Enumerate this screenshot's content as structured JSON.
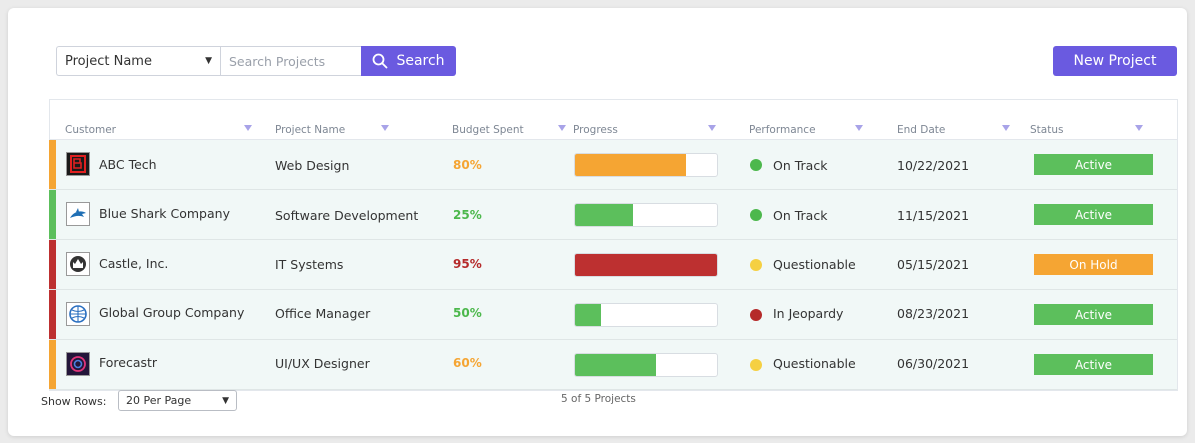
{
  "toolbar": {
    "field_select": "Project Name",
    "search_placeholder": "Search Projects",
    "search_label": "Search",
    "new_project_label": "New Project"
  },
  "columns": [
    "Customer",
    "Project Name",
    "Budget Spent",
    "Progress",
    "Performance",
    "End Date",
    "Status"
  ],
  "rows": [
    {
      "customer": "ABC Tech",
      "project": "Web Design",
      "budget": "80%",
      "budget_color": "#f5a533",
      "progress": 0.78,
      "progress_color": "#f5a533",
      "performance": "On Track",
      "perf_color": "#4cb84c",
      "end_date": "10/22/2021",
      "status": "Active",
      "status_color": "#5cbf5c",
      "accent_color": "#f5a533",
      "logo_icon": "abc-tech-logo-icon"
    },
    {
      "customer": "Blue Shark Company",
      "project": "Software Development",
      "budget": "25%",
      "budget_color": "#4cb84c",
      "progress": 0.41,
      "progress_color": "#5cbf5c",
      "performance": "On Track",
      "perf_color": "#4cb84c",
      "end_date": "11/15/2021",
      "status": "Active",
      "status_color": "#5cbf5c",
      "accent_color": "#5cbf5c",
      "logo_icon": "shark-logo-icon"
    },
    {
      "customer": "Castle, Inc.",
      "project": "IT Systems",
      "budget": "95%",
      "budget_color": "#b52a2a",
      "progress": 1.0,
      "progress_color": "#bd3030",
      "performance": "Questionable",
      "perf_color": "#f5d042",
      "end_date": "05/15/2021",
      "status": "On Hold",
      "status_color": "#f5a533",
      "accent_color": "#bd3030",
      "logo_icon": "castle-logo-icon"
    },
    {
      "customer": "Global Group Company",
      "project": "Office Manager",
      "budget": "50%",
      "budget_color": "#4cb84c",
      "progress": 0.18,
      "progress_color": "#5cbf5c",
      "performance": "In Jeopardy",
      "perf_color": "#b52a2a",
      "end_date": "08/23/2021",
      "status": "Active",
      "status_color": "#5cbf5c",
      "accent_color": "#bd3030",
      "logo_icon": "globe-logo-icon"
    },
    {
      "customer": "Forecastr",
      "project": "UI/UX Designer",
      "budget": "60%",
      "budget_color": "#f5a533",
      "progress": 0.57,
      "progress_color": "#5cbf5c",
      "performance": "Questionable",
      "perf_color": "#f5d042",
      "end_date": "06/30/2021",
      "status": "Active",
      "status_color": "#5cbf5c",
      "accent_color": "#f5a533",
      "logo_icon": "forecastr-logo-icon"
    }
  ],
  "footer": {
    "show_rows_label": "Show Rows:",
    "rows_per_page": "20 Per Page",
    "count_text": "5 of 5 Projects"
  }
}
